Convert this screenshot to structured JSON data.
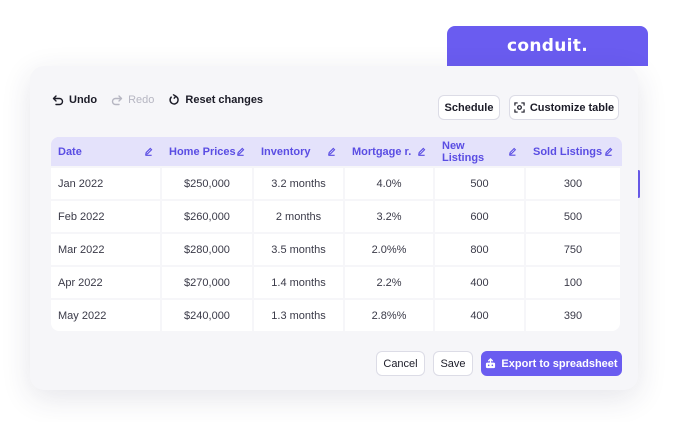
{
  "brand": {
    "name": "conduit."
  },
  "toolbar": {
    "undo_label": "Undo",
    "redo_label": "Redo",
    "reset_label": "Reset changes"
  },
  "actions": {
    "schedule_label": "Schedule",
    "customize_label": "Customize table"
  },
  "table": {
    "columns": [
      "Date",
      "Home Prices",
      "Inventory",
      "Mortgage r.",
      "New Listings",
      "Sold Listings"
    ],
    "rows": [
      [
        "Jan 2022",
        "$250,000",
        "3.2 months",
        "4.0%",
        "500",
        "300"
      ],
      [
        "Feb 2022",
        "$260,000",
        "2 months",
        "3.2%",
        "600",
        "500"
      ],
      [
        "Mar 2022",
        "$280,000",
        "3.5 months",
        "2.0%%",
        "800",
        "750"
      ],
      [
        "Apr 2022",
        "$270,000",
        "1.4 months",
        "2.2%",
        "400",
        "100"
      ],
      [
        "May 2022",
        "$240,000",
        "1.3 months",
        "2.8%%",
        "400",
        "390"
      ]
    ]
  },
  "footer": {
    "cancel_label": "Cancel",
    "save_label": "Save",
    "export_label": "Export to spreadsheet"
  },
  "colors": {
    "accent": "#6a5cf0",
    "header_bg": "#e4e2fb",
    "header_text": "#5a4de3"
  },
  "icons": [
    "undo-icon",
    "redo-icon",
    "reset-icon",
    "customize-icon",
    "edit-icon",
    "export-icon"
  ]
}
